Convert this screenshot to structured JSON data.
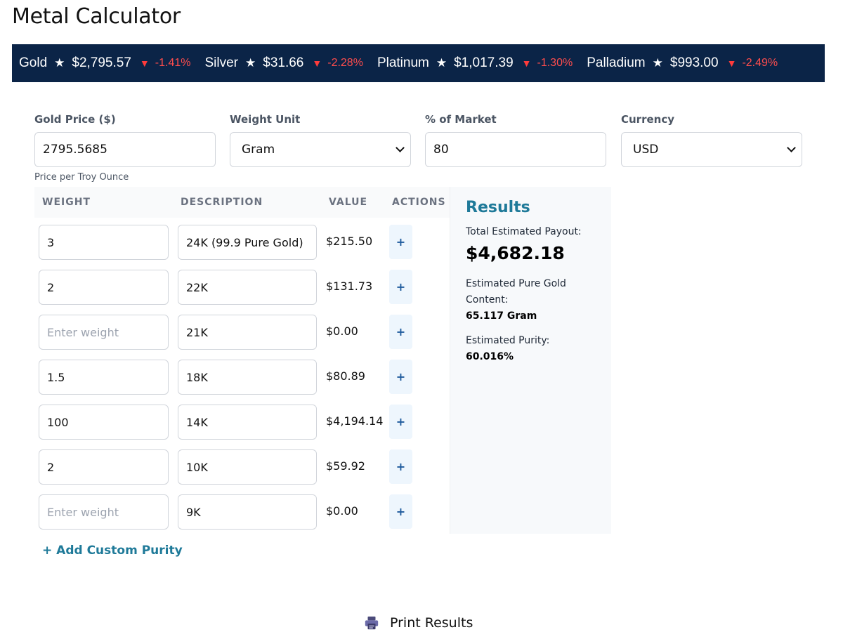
{
  "page": {
    "title": "Metal Calculator"
  },
  "ticker": [
    {
      "name": "Gold",
      "star": "★",
      "price": "$2,795.57",
      "arrow": "▼",
      "change": "-1.41%"
    },
    {
      "name": "Silver",
      "star": "★",
      "price": "$31.66",
      "arrow": "▼",
      "change": "-2.28%"
    },
    {
      "name": "Platinum",
      "star": "★",
      "price": "$1,017.39",
      "arrow": "▼",
      "change": "-1.30%"
    },
    {
      "name": "Palladium",
      "star": "★",
      "price": "$993.00",
      "arrow": "▼",
      "change": "-2.49%"
    }
  ],
  "form": {
    "gold_price": {
      "label": "Gold Price ($)",
      "value": "2795.5685",
      "help": "Price per Troy Ounce"
    },
    "weight_unit": {
      "label": "Weight Unit",
      "value": "Gram"
    },
    "market_percent": {
      "label": "% of Market",
      "value": "80"
    },
    "currency": {
      "label": "Currency",
      "value": "USD"
    }
  },
  "table": {
    "headers": {
      "weight": "WEIGHT",
      "description": "DESCRIPTION",
      "value": "VALUE",
      "actions": "ACTIONS"
    },
    "weight_placeholder": "Enter weight",
    "add_symbol": "+",
    "rows": [
      {
        "weight": "3",
        "description": "24K (99.9 Pure Gold)",
        "value": "$215.50"
      },
      {
        "weight": "2",
        "description": "22K",
        "value": "$131.73"
      },
      {
        "weight": "",
        "description": "21K",
        "value": "$0.00"
      },
      {
        "weight": "1.5",
        "description": "18K",
        "value": "$80.89"
      },
      {
        "weight": "100",
        "description": "14K",
        "value": "$4,194.14"
      },
      {
        "weight": "2",
        "description": "10K",
        "value": "$59.92"
      },
      {
        "weight": "",
        "description": "9K",
        "value": "$0.00"
      }
    ]
  },
  "results": {
    "title": "Results",
    "payout_label": "Total Estimated Payout:",
    "payout_value": "$4,682.18",
    "pure_gold_label_1": "Estimated Pure Gold",
    "pure_gold_label_2": "Content:",
    "pure_gold_value": "65.117 Gram",
    "purity_label": "Estimated Purity:",
    "purity_value": "60.016%"
  },
  "actions": {
    "add_custom_purity": "+ Add Custom Purity",
    "print_results": "Print Results"
  },
  "colors": {
    "ticker_bg": "#0b2447",
    "down": "#ff4d4d",
    "accent": "#1f7a99"
  }
}
